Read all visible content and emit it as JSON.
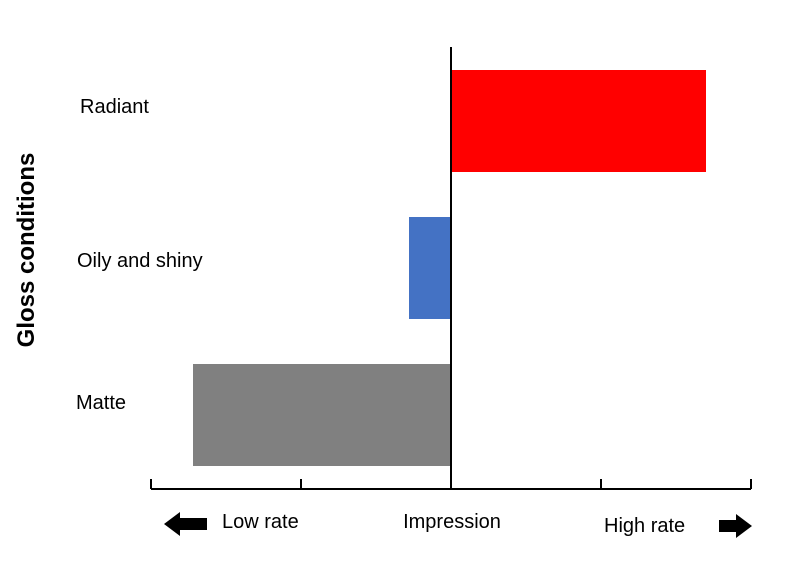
{
  "chart_data": {
    "type": "bar",
    "orientation": "horizontal",
    "categories": [
      "Radiant",
      "Oily and shiny",
      "Matte"
    ],
    "values": [
      2.55,
      -0.42,
      -2.58
    ],
    "colors": [
      "#ff0000",
      "#4472c4",
      "#808080"
    ],
    "ylabel": "Gloss conditions",
    "xlabel": "Impression",
    "xlim": [
      -3,
      3
    ],
    "x_left_label": "Low rate",
    "x_right_label": "High rate",
    "x_left_arrow": "arrow-left-icon",
    "x_right_arrow": "arrow-right-icon",
    "grid": false,
    "legend": "none"
  }
}
